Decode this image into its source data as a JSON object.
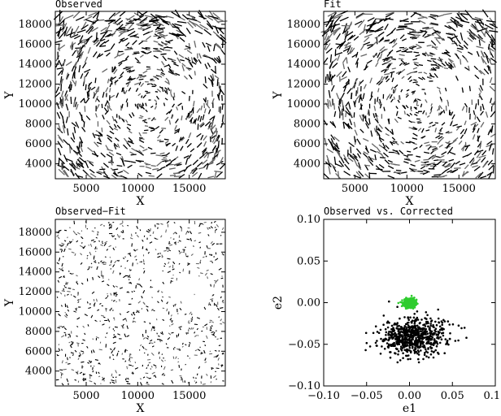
{
  "chart_data": [
    {
      "type": "scatter",
      "title": "Observed",
      "xlabel": "X",
      "ylabel": "Y",
      "xlim": [
        2000,
        18500
      ],
      "ylim": [
        2500,
        19300
      ],
      "xticks": [
        "5000",
        "10000",
        "15000"
      ],
      "yticks": [
        "4000",
        "6000",
        "8000",
        "10000",
        "12000",
        "14000",
        "16000",
        "18000"
      ],
      "description_kind": "whisker map",
      "density": 950,
      "whisker_scale": 1.0
    },
    {
      "type": "scatter",
      "title": "Fit",
      "xlabel": "X",
      "ylabel": "Y",
      "xlim": [
        2000,
        18500
      ],
      "ylim": [
        2500,
        19300
      ],
      "xticks": [
        "5000",
        "10000",
        "15000"
      ],
      "yticks": [
        "4000",
        "6000",
        "8000",
        "10000",
        "12000",
        "14000",
        "16000",
        "18000"
      ],
      "density": 950,
      "whisker_scale": 1.0
    },
    {
      "type": "scatter",
      "title": "Observed−Fit",
      "xlabel": "X",
      "ylabel": "Y",
      "xlim": [
        2000,
        18500
      ],
      "ylim": [
        2500,
        19300
      ],
      "xticks": [
        "5000",
        "10000",
        "15000"
      ],
      "yticks": [
        "4000",
        "6000",
        "8000",
        "10000",
        "12000",
        "14000",
        "16000",
        "18000"
      ],
      "density": 900,
      "whisker_scale": 0.35
    },
    {
      "type": "scatter",
      "title": "Observed vs. Corrected",
      "xlabel": "e1",
      "ylabel": "e2",
      "xlim": [
        -0.1,
        0.1
      ],
      "ylim": [
        -0.1,
        0.1
      ],
      "xticks": [
        "−0.10",
        "−0.05",
        "0.00",
        "0.05",
        "0.10"
      ],
      "yticks": [
        "−0.10",
        "−0.05",
        "0.00",
        "0.05",
        "0.10"
      ],
      "series": [
        {
          "color": "#000000",
          "center": [
            0.0,
            -0.04
          ],
          "spread": [
            0.017,
            0.01
          ],
          "count": 700
        },
        {
          "color": "#2ecc2e",
          "center": [
            0.0,
            0.0
          ],
          "spread": [
            0.004,
            0.003
          ],
          "count": 250
        }
      ]
    }
  ]
}
